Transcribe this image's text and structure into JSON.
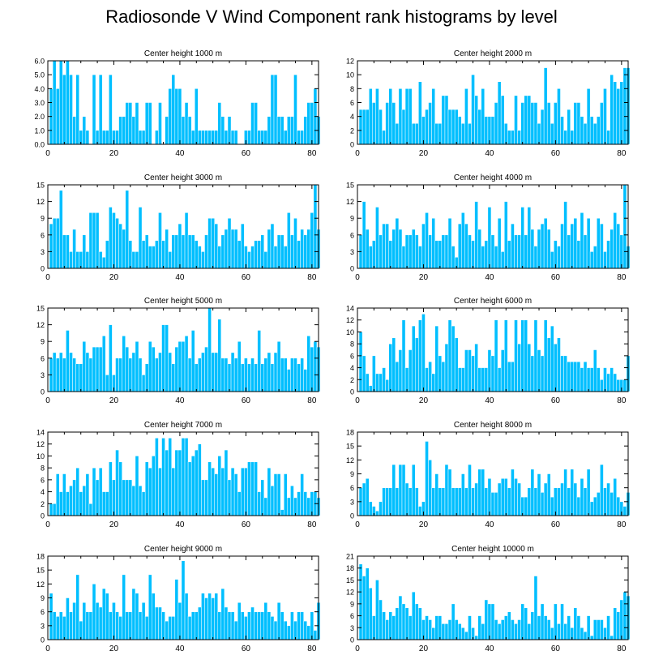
{
  "title": "Radiosonde V Wind Component rank histograms by level",
  "colors": {
    "bar": "#00bfff",
    "bar_edge": "#ffffff",
    "axis": "#000000",
    "background": "#ffffff"
  },
  "chart_data": [
    {
      "type": "bar",
      "title": "Center height 1000 m",
      "xlabel": "",
      "ylabel": "",
      "xlim": [
        0,
        82
      ],
      "ylim": [
        0,
        6
      ],
      "xticks": [
        "0",
        "20",
        "40",
        "60",
        "80"
      ],
      "yticks": [
        "0.0",
        "1.0",
        "2.0",
        "3.0",
        "4.0",
        "5.0",
        "6.0"
      ],
      "x_start": 1,
      "values": [
        4,
        6,
        4,
        6,
        5,
        6,
        5,
        2,
        5,
        1,
        2,
        1,
        0,
        5,
        1,
        5,
        1,
        1,
        5,
        1,
        1,
        2,
        2,
        3,
        3,
        2,
        3,
        1,
        1,
        3,
        3,
        0,
        1,
        3,
        0,
        2,
        4,
        5,
        4,
        4,
        2,
        3,
        2,
        1,
        4,
        1,
        1,
        1,
        1,
        1,
        1,
        3,
        2,
        1,
        2,
        1,
        1,
        0,
        0,
        1,
        1,
        3,
        3,
        1,
        1,
        1,
        2,
        5,
        5,
        2,
        2,
        1,
        2,
        2,
        5,
        1,
        1,
        2,
        3,
        3,
        4,
        2
      ]
    },
    {
      "type": "bar",
      "title": "Center height 2000 m",
      "xlabel": "",
      "ylabel": "",
      "xlim": [
        0,
        82
      ],
      "ylim": [
        0,
        12
      ],
      "xticks": [
        "0",
        "20",
        "40",
        "60",
        "80"
      ],
      "yticks": [
        "0",
        "2",
        "4",
        "6",
        "8",
        "10",
        "12"
      ],
      "x_start": 1,
      "values": [
        5,
        5,
        5,
        8,
        6,
        8,
        5,
        2,
        6,
        8,
        6,
        3,
        8,
        5,
        8,
        8,
        3,
        3,
        9,
        4,
        5,
        6,
        8,
        3,
        3,
        7,
        7,
        5,
        5,
        5,
        4,
        3,
        8,
        3,
        10,
        7,
        5,
        8,
        4,
        4,
        4,
        6,
        9,
        7,
        3,
        2,
        2,
        7,
        2,
        6,
        7,
        7,
        6,
        6,
        3,
        5,
        11,
        6,
        3,
        6,
        8,
        4,
        2,
        5,
        2,
        6,
        6,
        4,
        3,
        8,
        4,
        3,
        4,
        6,
        8,
        2,
        10,
        9,
        8,
        9,
        11,
        11
      ]
    },
    {
      "type": "bar",
      "title": "Center height 3000 m",
      "xlabel": "",
      "ylabel": "",
      "xlim": [
        0,
        82
      ],
      "ylim": [
        0,
        15
      ],
      "xticks": [
        "0",
        "20",
        "40",
        "60",
        "80"
      ],
      "yticks": [
        "0",
        "3",
        "6",
        "9",
        "12",
        "15"
      ],
      "x_start": 1,
      "values": [
        8,
        9,
        9,
        14,
        6,
        6,
        3,
        7,
        3,
        3,
        6,
        3,
        10,
        10,
        10,
        3,
        2,
        5,
        11,
        10,
        9,
        8,
        7,
        14,
        5,
        3,
        3,
        11,
        5,
        6,
        4,
        4,
        5,
        10,
        5,
        7,
        3,
        6,
        6,
        8,
        6,
        10,
        6,
        6,
        5,
        4,
        3,
        6,
        9,
        9,
        8,
        4,
        6,
        7,
        9,
        7,
        7,
        5,
        8,
        4,
        3,
        4,
        5,
        5,
        6,
        3,
        7,
        8,
        4,
        6,
        6,
        4,
        10,
        6,
        9,
        5,
        7,
        6,
        7,
        10,
        15,
        7
      ]
    },
    {
      "type": "bar",
      "title": "Center height 4000 m",
      "xlabel": "",
      "ylabel": "",
      "xlim": [
        0,
        82
      ],
      "ylim": [
        0,
        15
      ],
      "xticks": [
        "0",
        "20",
        "40",
        "60",
        "80"
      ],
      "yticks": [
        "0",
        "3",
        "6",
        "9",
        "12",
        "15"
      ],
      "x_start": 1,
      "values": [
        6,
        12,
        7,
        4,
        5,
        11,
        6,
        8,
        8,
        5,
        7,
        9,
        7,
        4,
        6,
        6,
        7,
        6,
        4,
        8,
        10,
        6,
        9,
        5,
        5,
        6,
        6,
        9,
        4,
        2,
        8,
        10,
        8,
        6,
        5,
        12,
        7,
        4,
        5,
        11,
        6,
        4,
        9,
        3,
        12,
        5,
        8,
        6,
        6,
        11,
        6,
        11,
        7,
        4,
        7,
        8,
        9,
        7,
        3,
        5,
        4,
        8,
        12,
        6,
        8,
        9,
        5,
        10,
        6,
        9,
        3,
        4,
        9,
        8,
        3,
        5,
        7,
        10,
        8,
        6,
        15,
        4
      ]
    },
    {
      "type": "bar",
      "title": "Center height 5000 m",
      "xlabel": "",
      "ylabel": "",
      "xlim": [
        0,
        82
      ],
      "ylim": [
        0,
        15
      ],
      "xticks": [
        "0",
        "20",
        "40",
        "60",
        "80"
      ],
      "yticks": [
        "0",
        "3",
        "6",
        "9",
        "12",
        "15"
      ],
      "x_start": 1,
      "values": [
        6,
        7,
        6,
        7,
        6,
        11,
        7,
        6,
        5,
        5,
        9,
        7,
        6,
        8,
        8,
        8,
        10,
        3,
        12,
        3,
        6,
        6,
        10,
        8,
        6,
        7,
        9,
        6,
        3,
        5,
        9,
        8,
        6,
        7,
        12,
        12,
        7,
        5,
        8,
        9,
        9,
        10,
        6,
        11,
        5,
        6,
        7,
        8,
        15,
        7,
        7,
        13,
        6,
        6,
        5,
        7,
        6,
        9,
        5,
        6,
        5,
        6,
        5,
        11,
        5,
        6,
        7,
        5,
        7,
        9,
        6,
        6,
        4,
        6,
        6,
        5,
        6,
        4,
        10,
        8,
        9,
        8
      ]
    },
    {
      "type": "bar",
      "title": "Center height 6000 m",
      "xlabel": "",
      "ylabel": "",
      "xlim": [
        0,
        82
      ],
      "ylim": [
        0,
        14
      ],
      "xticks": [
        "0",
        "20",
        "40",
        "60",
        "80"
      ],
      "yticks": [
        "0",
        "2",
        "4",
        "6",
        "8",
        "10",
        "12",
        "14"
      ],
      "x_start": 1,
      "values": [
        10,
        6,
        3,
        1,
        6,
        3,
        3,
        4,
        2,
        8,
        9,
        5,
        7,
        12,
        4,
        7,
        11,
        9,
        12,
        13,
        4,
        5,
        3,
        11,
        6,
        5,
        8,
        12,
        11,
        9,
        4,
        4,
        7,
        7,
        6,
        8,
        4,
        4,
        4,
        7,
        6,
        12,
        4,
        7,
        12,
        5,
        5,
        12,
        8,
        12,
        12,
        8,
        6,
        12,
        7,
        6,
        12,
        9,
        11,
        8,
        9,
        6,
        6,
        5,
        5,
        5,
        5,
        4,
        5,
        4,
        4,
        7,
        4,
        2,
        4,
        3,
        4,
        3,
        2,
        2,
        2,
        6
      ]
    },
    {
      "type": "bar",
      "title": "Center height 7000 m",
      "xlabel": "",
      "ylabel": "",
      "xlim": [
        0,
        82
      ],
      "ylim": [
        0,
        14
      ],
      "xticks": [
        "0",
        "20",
        "40",
        "60",
        "80"
      ],
      "yticks": [
        "0",
        "2",
        "4",
        "6",
        "8",
        "10",
        "12",
        "14"
      ],
      "x_start": 1,
      "values": [
        2,
        2,
        7,
        4,
        7,
        4,
        5,
        6,
        8,
        4,
        5,
        7,
        2,
        8,
        6,
        8,
        4,
        4,
        9,
        6,
        11,
        9,
        6,
        6,
        6,
        5,
        10,
        5,
        4,
        9,
        8,
        10,
        13,
        8,
        13,
        11,
        13,
        8,
        11,
        11,
        13,
        13,
        9,
        10,
        11,
        12,
        6,
        6,
        9,
        8,
        7,
        10,
        8,
        11,
        6,
        8,
        7,
        4,
        8,
        8,
        9,
        9,
        9,
        4,
        6,
        3,
        8,
        5,
        7,
        7,
        1,
        7,
        3,
        5,
        3,
        4,
        7,
        4,
        3,
        4,
        4,
        3
      ]
    },
    {
      "type": "bar",
      "title": "Center height 8000 m",
      "xlabel": "",
      "ylabel": "",
      "xlim": [
        0,
        82
      ],
      "ylim": [
        0,
        18
      ],
      "xticks": [
        "0",
        "20",
        "40",
        "60",
        "80"
      ],
      "yticks": [
        "0",
        "3",
        "6",
        "9",
        "12",
        "15",
        "18"
      ],
      "x_start": 1,
      "values": [
        6,
        7,
        8,
        3,
        2,
        1,
        3,
        6,
        6,
        6,
        11,
        6,
        11,
        11,
        7,
        6,
        11,
        6,
        2,
        3,
        16,
        12,
        6,
        9,
        6,
        6,
        11,
        10,
        6,
        6,
        6,
        9,
        6,
        11,
        6,
        7,
        10,
        10,
        6,
        8,
        5,
        5,
        7,
        8,
        8,
        6,
        10,
        8,
        7,
        4,
        4,
        6,
        10,
        6,
        9,
        5,
        7,
        9,
        4,
        6,
        6,
        7,
        10,
        6,
        10,
        7,
        4,
        8,
        6,
        10,
        3,
        4,
        5,
        11,
        6,
        7,
        5,
        8,
        4,
        3,
        2,
        5
      ]
    },
    {
      "type": "bar",
      "title": "Center height 9000 m",
      "xlabel": "",
      "ylabel": "",
      "xlim": [
        0,
        82
      ],
      "ylim": [
        0,
        18
      ],
      "xticks": [
        "0",
        "20",
        "40",
        "60",
        "80"
      ],
      "yticks": [
        "0",
        "3",
        "6",
        "9",
        "12",
        "15",
        "18"
      ],
      "x_start": 1,
      "values": [
        10,
        6,
        5,
        6,
        5,
        9,
        6,
        8,
        14,
        4,
        8,
        6,
        6,
        12,
        8,
        7,
        11,
        10,
        6,
        8,
        6,
        5,
        14,
        6,
        6,
        11,
        10,
        6,
        8,
        5,
        14,
        10,
        7,
        7,
        6,
        4,
        5,
        5,
        13,
        8,
        17,
        10,
        5,
        6,
        6,
        7,
        10,
        9,
        10,
        9,
        10,
        6,
        11,
        7,
        6,
        6,
        4,
        8,
        6,
        5,
        6,
        7,
        6,
        6,
        6,
        8,
        6,
        5,
        4,
        8,
        6,
        4,
        3,
        6,
        4,
        6,
        6,
        4,
        3,
        6,
        2,
        8
      ]
    },
    {
      "type": "bar",
      "title": "Center height 10000 m",
      "xlabel": "",
      "ylabel": "",
      "xlim": [
        0,
        82
      ],
      "ylim": [
        0,
        21
      ],
      "xticks": [
        "0",
        "20",
        "40",
        "60",
        "80"
      ],
      "yticks": [
        "0",
        "3",
        "6",
        "9",
        "12",
        "15",
        "18",
        "21"
      ],
      "x_start": 1,
      "values": [
        19,
        16,
        18,
        13,
        6,
        15,
        10,
        7,
        5,
        7,
        6,
        8,
        11,
        9,
        8,
        6,
        12,
        9,
        8,
        5,
        6,
        5,
        3,
        6,
        6,
        4,
        4,
        5,
        9,
        5,
        4,
        3,
        2,
        6,
        3,
        1,
        6,
        4,
        10,
        9,
        9,
        5,
        4,
        5,
        6,
        7,
        5,
        4,
        5,
        9,
        8,
        4,
        7,
        16,
        6,
        9,
        6,
        5,
        3,
        9,
        4,
        9,
        4,
        6,
        3,
        8,
        6,
        3,
        2,
        6,
        1,
        5,
        5,
        5,
        3,
        6,
        1,
        8,
        7,
        10,
        12,
        11
      ]
    }
  ]
}
